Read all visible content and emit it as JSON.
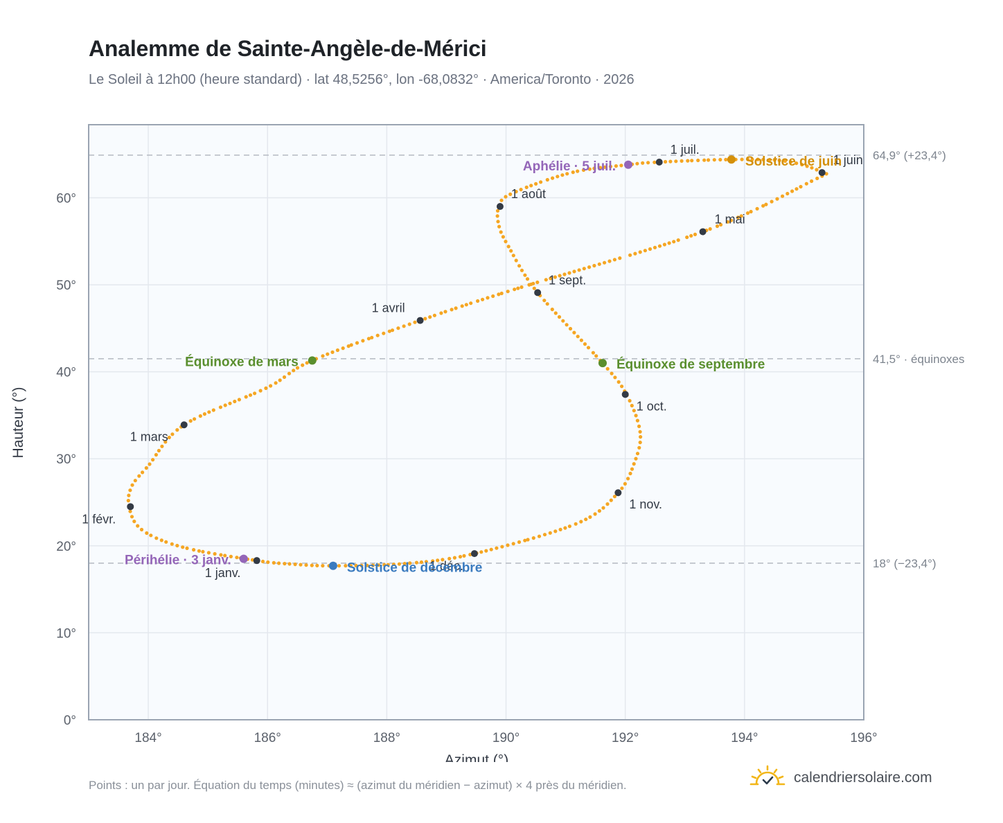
{
  "title": "Analemme de Sainte-Angèle-de-Mérici",
  "subtitle": "Le Soleil à 12h00 (heure standard) · lat 48,5256°, lon -68,0832° · America/Toronto · 2026",
  "footnote": "Points : un par jour. Équation du temps (minutes) ≈ (azimut du méridien − azimut) × 4 près du méridien.",
  "brand": "calendriersolaire.com",
  "colors": {
    "curve": "#f5a623",
    "month_point": "#333a45",
    "equinox": "#5a8f2e",
    "summer_solstice": "#d4900a",
    "winter_solstice": "#3b7bbf",
    "apsis": "#9466b8",
    "plot_bg": "#f8fbfe",
    "grid": "#e4e8ee",
    "frame": "#9aa4b2",
    "ref_line": "#b9bec6",
    "brand_sun": "#f2b618"
  },
  "chart_data": {
    "type": "scatter",
    "xlabel": "Azimut (°)",
    "ylabel": "Hauteur (°)",
    "xlim": [
      183,
      196
    ],
    "ylim": [
      0,
      68.4
    ],
    "xticks": [
      184,
      186,
      188,
      190,
      192,
      194,
      196
    ],
    "xtick_labels": [
      "184°",
      "186°",
      "188°",
      "190°",
      "192°",
      "194°",
      "196°"
    ],
    "yticks": [
      0,
      10,
      20,
      30,
      40,
      50,
      60
    ],
    "ytick_labels": [
      "0°",
      "10°",
      "20°",
      "30°",
      "40°",
      "50°",
      "60°"
    ],
    "grid": true,
    "reference_lines": [
      {
        "y": 64.9,
        "label": "64,9° (+23,4°)"
      },
      {
        "y": 41.5,
        "label": "41,5° · équinoxes"
      },
      {
        "y": 18.0,
        "label": "18° (−23,4°)"
      }
    ],
    "analemma_path": [
      [
        185.82,
        18.3
      ],
      [
        184.6,
        19.8
      ],
      [
        183.9,
        21.8
      ],
      [
        183.68,
        24.4
      ],
      [
        183.72,
        26.8
      ],
      [
        184.0,
        29.2
      ],
      [
        184.6,
        33.9
      ],
      [
        186.0,
        38.2
      ],
      [
        186.75,
        41.3
      ],
      [
        188.56,
        45.9
      ],
      [
        190.2,
        49.6
      ],
      [
        193.3,
        56.1
      ],
      [
        195.15,
        62.0
      ],
      [
        195.3,
        62.9
      ],
      [
        194.7,
        64.2
      ],
      [
        193.8,
        64.4
      ],
      [
        192.55,
        64.1
      ],
      [
        192.05,
        63.8
      ],
      [
        191.1,
        62.9
      ],
      [
        190.1,
        60.5
      ],
      [
        189.88,
        59.0
      ],
      [
        189.88,
        56.8
      ],
      [
        190.05,
        54.3
      ],
      [
        190.53,
        49.1
      ],
      [
        191.62,
        41.0
      ],
      [
        192.02,
        37.4
      ],
      [
        192.25,
        33.0
      ],
      [
        192.15,
        29.5
      ],
      [
        191.88,
        26.1
      ],
      [
        191.2,
        22.6
      ],
      [
        189.47,
        19.1
      ],
      [
        188.3,
        17.95
      ],
      [
        187.1,
        17.7
      ],
      [
        186.4,
        17.9
      ],
      [
        185.82,
        18.3
      ]
    ],
    "months": [
      {
        "label": "1 janv.",
        "x": 185.82,
        "y": 18.3
      },
      {
        "label": "1 févr.",
        "x": 183.7,
        "y": 24.5
      },
      {
        "label": "1 mars",
        "x": 184.6,
        "y": 33.9
      },
      {
        "label": "1 avril",
        "x": 188.56,
        "y": 45.9
      },
      {
        "label": "1 mai",
        "x": 193.3,
        "y": 56.1
      },
      {
        "label": "1 juin",
        "x": 195.3,
        "y": 62.9
      },
      {
        "label": "1 juil.",
        "x": 192.57,
        "y": 64.1
      },
      {
        "label": "1 août",
        "x": 189.9,
        "y": 59.0
      },
      {
        "label": "1 sept.",
        "x": 190.53,
        "y": 49.1
      },
      {
        "label": "1 oct.",
        "x": 192.0,
        "y": 37.4
      },
      {
        "label": "1 nov.",
        "x": 191.88,
        "y": 26.1
      },
      {
        "label": "1 déc.",
        "x": 189.47,
        "y": 19.1
      }
    ],
    "events": [
      {
        "label": "Équinoxe de mars",
        "x": 186.75,
        "y": 41.3,
        "kind": "equinox"
      },
      {
        "label": "Équinoxe de septembre",
        "x": 191.62,
        "y": 41.0,
        "kind": "equinox"
      },
      {
        "label": "Solstice de juin",
        "x": 193.78,
        "y": 64.4,
        "kind": "summer_solstice"
      },
      {
        "label": "Solstice de décembre",
        "x": 187.1,
        "y": 17.7,
        "kind": "winter_solstice"
      },
      {
        "label": "Aphélie · 5 juil.",
        "x": 192.05,
        "y": 63.8,
        "kind": "apsis"
      },
      {
        "label": "Périhélie · 3 janv.",
        "x": 185.6,
        "y": 18.5,
        "kind": "apsis"
      }
    ]
  }
}
